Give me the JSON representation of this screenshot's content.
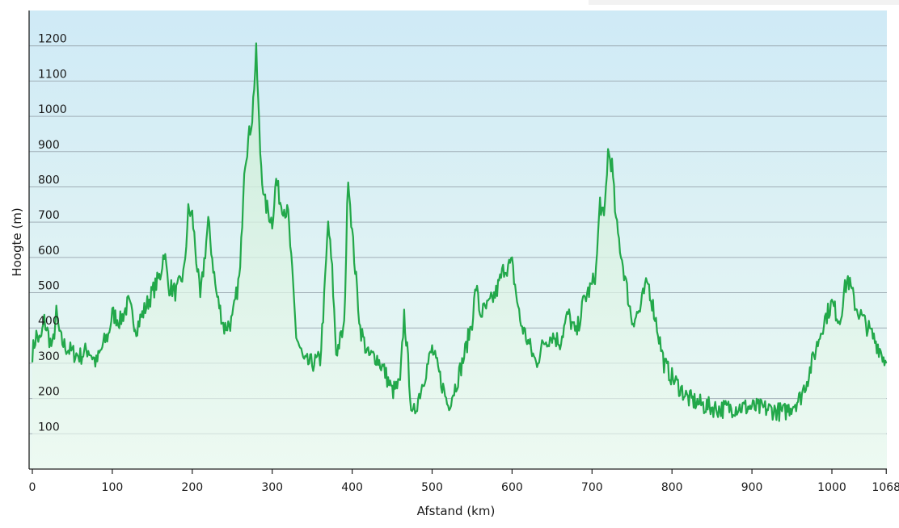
{
  "chart_data": {
    "type": "area",
    "xlabel": "Afstand  (km)",
    "ylabel": "Hoogte (m)",
    "xlim": [
      0,
      1080
    ],
    "ylim": [
      0,
      1300
    ],
    "x_ticks": [
      0,
      100,
      200,
      300,
      400,
      500,
      600,
      700,
      800,
      900,
      1000,
      1068
    ],
    "y_ticks": [
      100,
      200,
      300,
      400,
      500,
      600,
      700,
      800,
      900,
      1000,
      1100,
      1200
    ],
    "grid": "horizontal",
    "colors": {
      "line": "#22a84a",
      "area_top": "#c9ecd4",
      "area_bottom": "#eefaf2",
      "background_top": "#cfeaf6",
      "background_bottom": "#ecf9f2"
    },
    "series": [
      {
        "x": [
          0,
          5,
          10,
          15,
          20,
          25,
          30,
          35,
          40,
          50,
          60,
          70,
          80,
          90,
          95,
          100,
          110,
          120,
          130,
          140,
          150,
          160,
          165,
          170,
          180,
          190,
          195,
          200,
          210,
          220,
          225,
          230,
          240,
          250,
          260,
          265,
          270,
          275,
          280,
          285,
          290,
          300,
          305,
          310,
          320,
          330,
          340,
          350,
          360,
          365,
          370,
          375,
          380,
          390,
          395,
          400,
          410,
          420,
          430,
          440,
          450,
          460,
          465,
          470,
          475,
          480,
          490,
          500,
          510,
          520,
          530,
          540,
          550,
          555,
          560,
          570,
          580,
          590,
          600,
          610,
          620,
          630,
          640,
          650,
          660,
          670,
          680,
          690,
          700,
          705,
          710,
          715,
          720,
          725,
          730,
          740,
          750,
          760,
          765,
          770,
          780,
          790,
          800,
          810,
          820,
          840,
          860,
          880,
          900,
          920,
          940,
          960,
          970,
          980,
          990,
          1000,
          1010,
          1015,
          1020,
          1030,
          1040,
          1050,
          1060,
          1068
        ],
        "y": [
          330,
          380,
          360,
          420,
          380,
          340,
          440,
          370,
          350,
          330,
          320,
          340,
          300,
          360,
          380,
          440,
          420,
          470,
          400,
          450,
          500,
          550,
          620,
          520,
          500,
          560,
          730,
          720,
          480,
          700,
          600,
          500,
          400,
          420,
          560,
          860,
          930,
          1000,
          1180,
          900,
          760,
          700,
          820,
          760,
          720,
          380,
          300,
          300,
          310,
          480,
          700,
          560,
          330,
          400,
          840,
          670,
          400,
          320,
          320,
          280,
          220,
          240,
          440,
          300,
          140,
          180,
          260,
          340,
          260,
          180,
          240,
          320,
          420,
          520,
          440,
          460,
          500,
          570,
          580,
          420,
          360,
          300,
          360,
          380,
          360,
          440,
          380,
          480,
          520,
          560,
          760,
          700,
          900,
          860,
          700,
          560,
          420,
          450,
          500,
          530,
          420,
          300,
          260,
          230,
          200,
          180,
          170,
          175,
          175,
          170,
          160,
          200,
          260,
          340,
          420,
          470,
          420,
          500,
          540,
          460,
          420,
          380,
          340,
          300
        ]
      }
    ]
  }
}
